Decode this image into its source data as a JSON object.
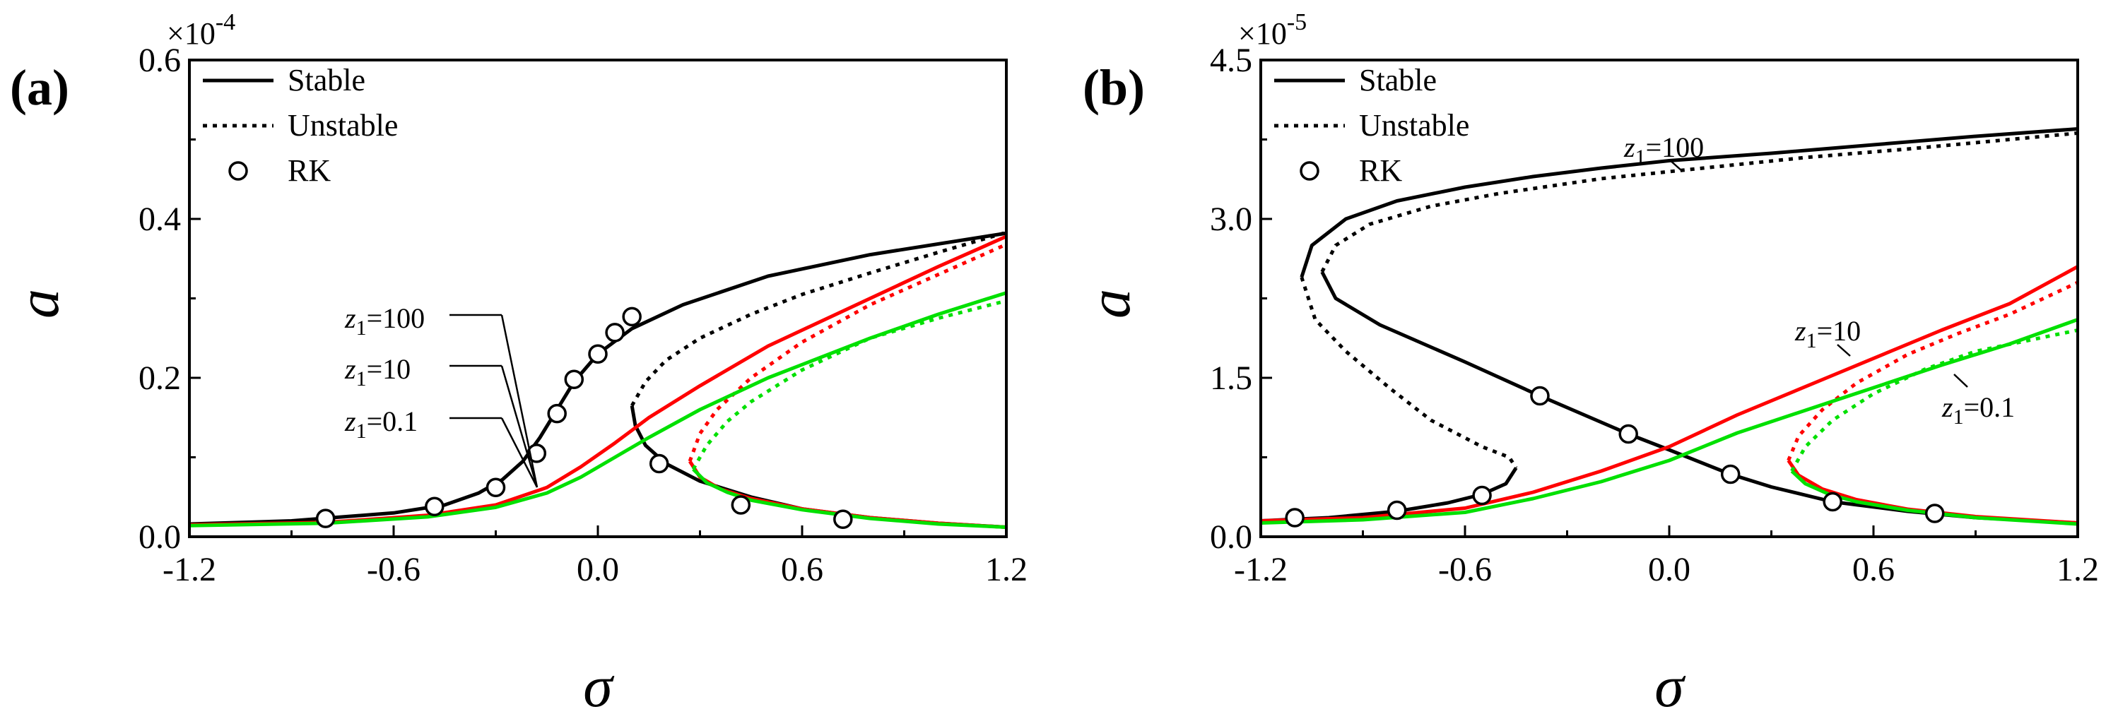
{
  "chart_data": [
    {
      "type": "line",
      "panel_label": "(a)",
      "xlabel": "σ",
      "ylabel": "a",
      "xlim": [
        -1.2,
        1.2
      ],
      "ylim": [
        0.0,
        0.6
      ],
      "y_multiplier": {
        "base": "×10",
        "exp": "-4"
      },
      "x_ticks": [
        "-1.2",
        "-0.6",
        "0.0",
        "0.6",
        "1.2"
      ],
      "y_ticks": [
        "0.0",
        "0.2",
        "0.4",
        "0.6"
      ],
      "legend": [
        {
          "label": "Stable",
          "style": "solid"
        },
        {
          "label": "Unstable",
          "style": "dotted"
        },
        {
          "label": "RK",
          "style": "circle"
        }
      ],
      "annotations": [
        {
          "sub": "1",
          "value": "=100"
        },
        {
          "sub": "1",
          "value": "=10"
        },
        {
          "sub": "1",
          "value": "=0.1"
        }
      ],
      "series": [
        {
          "name": "z1=100 stable",
          "color": "#000000",
          "style": "solid",
          "points": [
            [
              -1.2,
              0.016
            ],
            [
              -0.9,
              0.02
            ],
            [
              -0.6,
              0.03
            ],
            [
              -0.45,
              0.04
            ],
            [
              -0.35,
              0.055
            ],
            [
              -0.28,
              0.072
            ],
            [
              -0.22,
              0.095
            ],
            [
              -0.17,
              0.125
            ],
            [
              -0.12,
              0.16
            ],
            [
              -0.07,
              0.195
            ],
            [
              0.0,
              0.23
            ],
            [
              0.1,
              0.262
            ],
            [
              0.25,
              0.292
            ],
            [
              0.5,
              0.328
            ],
            [
              0.8,
              0.355
            ],
            [
              1.2,
              0.382
            ]
          ]
        },
        {
          "name": "z1=100 stable lower",
          "color": "#000000",
          "style": "solid",
          "points": [
            [
              0.1,
              0.165
            ],
            [
              0.11,
              0.14
            ],
            [
              0.14,
              0.115
            ],
            [
              0.2,
              0.092
            ],
            [
              0.3,
              0.07
            ],
            [
              0.45,
              0.05
            ],
            [
              0.6,
              0.035
            ],
            [
              0.8,
              0.024
            ],
            [
              1.0,
              0.017
            ],
            [
              1.2,
              0.012
            ]
          ]
        },
        {
          "name": "z1=100 unstable",
          "color": "#000000",
          "style": "dotted",
          "points": [
            [
              0.1,
              0.165
            ],
            [
              0.14,
              0.195
            ],
            [
              0.2,
              0.222
            ],
            [
              0.3,
              0.25
            ],
            [
              0.45,
              0.28
            ],
            [
              0.6,
              0.305
            ],
            [
              0.8,
              0.332
            ],
            [
              1.0,
              0.358
            ],
            [
              1.2,
              0.383
            ]
          ]
        },
        {
          "name": "z1=10 stable",
          "color": "#ff0000",
          "style": "solid",
          "points": [
            [
              -1.2,
              0.015
            ],
            [
              -0.8,
              0.018
            ],
            [
              -0.5,
              0.027
            ],
            [
              -0.3,
              0.04
            ],
            [
              -0.15,
              0.062
            ],
            [
              -0.05,
              0.088
            ],
            [
              0.05,
              0.118
            ],
            [
              0.15,
              0.15
            ],
            [
              0.3,
              0.19
            ],
            [
              0.5,
              0.24
            ],
            [
              0.8,
              0.3
            ],
            [
              1.0,
              0.34
            ],
            [
              1.2,
              0.378
            ]
          ]
        },
        {
          "name": "z1=10 stable lower",
          "color": "#ff0000",
          "style": "solid",
          "points": [
            [
              0.27,
              0.095
            ],
            [
              0.3,
              0.075
            ],
            [
              0.36,
              0.06
            ],
            [
              0.45,
              0.048
            ],
            [
              0.6,
              0.035
            ],
            [
              0.8,
              0.024
            ],
            [
              1.0,
              0.017
            ],
            [
              1.2,
              0.012
            ]
          ]
        },
        {
          "name": "z1=10 unstable",
          "color": "#ff0000",
          "style": "dotted",
          "points": [
            [
              0.27,
              0.095
            ],
            [
              0.3,
              0.13
            ],
            [
              0.35,
              0.16
            ],
            [
              0.45,
              0.2
            ],
            [
              0.6,
              0.245
            ],
            [
              0.8,
              0.292
            ],
            [
              1.0,
              0.33
            ],
            [
              1.2,
              0.368
            ]
          ]
        },
        {
          "name": "z1=0.1 stable",
          "color": "#00e000",
          "style": "solid",
          "points": [
            [
              -1.2,
              0.014
            ],
            [
              -0.8,
              0.017
            ],
            [
              -0.5,
              0.025
            ],
            [
              -0.3,
              0.037
            ],
            [
              -0.15,
              0.055
            ],
            [
              -0.05,
              0.075
            ],
            [
              0.05,
              0.1
            ],
            [
              0.15,
              0.125
            ],
            [
              0.3,
              0.16
            ],
            [
              0.5,
              0.2
            ],
            [
              0.8,
              0.25
            ],
            [
              1.0,
              0.28
            ],
            [
              1.2,
              0.307
            ]
          ]
        },
        {
          "name": "z1=0.1 stable lower",
          "color": "#00e000",
          "style": "solid",
          "points": [
            [
              0.28,
              0.085
            ],
            [
              0.32,
              0.068
            ],
            [
              0.38,
              0.056
            ],
            [
              0.45,
              0.046
            ],
            [
              0.6,
              0.034
            ],
            [
              0.8,
              0.023
            ],
            [
              1.0,
              0.016
            ],
            [
              1.2,
              0.012
            ]
          ]
        },
        {
          "name": "z1=0.1 unstable",
          "color": "#00e000",
          "style": "dotted",
          "points": [
            [
              0.28,
              0.085
            ],
            [
              0.32,
              0.115
            ],
            [
              0.38,
              0.145
            ],
            [
              0.45,
              0.17
            ],
            [
              0.6,
              0.21
            ],
            [
              0.8,
              0.25
            ],
            [
              1.0,
              0.275
            ],
            [
              1.2,
              0.297
            ]
          ]
        }
      ],
      "rk_points": [
        [
          -0.8,
          0.023
        ],
        [
          -0.48,
          0.038
        ],
        [
          -0.3,
          0.062
        ],
        [
          -0.18,
          0.105
        ],
        [
          -0.12,
          0.155
        ],
        [
          -0.07,
          0.198
        ],
        [
          0.0,
          0.23
        ],
        [
          0.05,
          0.257
        ],
        [
          0.1,
          0.277
        ],
        [
          0.18,
          0.092
        ],
        [
          0.42,
          0.04
        ],
        [
          0.72,
          0.022
        ]
      ]
    },
    {
      "type": "line",
      "panel_label": "(b)",
      "xlabel": "σ",
      "ylabel": "a",
      "xlim": [
        -1.2,
        1.2
      ],
      "ylim": [
        0.0,
        4.5
      ],
      "y_multiplier": {
        "base": "×10",
        "exp": "-5"
      },
      "x_ticks": [
        "-1.2",
        "-0.6",
        "0.0",
        "0.6",
        "1.2"
      ],
      "y_ticks": [
        "0.0",
        "1.5",
        "3.0",
        "4.5"
      ],
      "legend": [
        {
          "label": "Stable",
          "style": "solid"
        },
        {
          "label": "Unstable",
          "style": "dotted"
        },
        {
          "label": "RK",
          "style": "circle"
        }
      ],
      "annotations": [
        {
          "sub": "1",
          "value": "=100"
        },
        {
          "sub": "1",
          "value": "=10"
        },
        {
          "sub": "1",
          "value": "=0.1"
        }
      ],
      "series": [
        {
          "name": "z1=100 upper stable",
          "color": "#000000",
          "style": "solid",
          "points": [
            [
              -1.08,
              2.45
            ],
            [
              -1.05,
              2.75
            ],
            [
              -0.95,
              3.0
            ],
            [
              -0.8,
              3.17
            ],
            [
              -0.6,
              3.3
            ],
            [
              -0.4,
              3.4
            ],
            [
              -0.2,
              3.48
            ],
            [
              0.0,
              3.55
            ],
            [
              0.3,
              3.62
            ],
            [
              0.6,
              3.7
            ],
            [
              0.9,
              3.78
            ],
            [
              1.2,
              3.85
            ]
          ]
        },
        {
          "name": "z1=100 lower stable",
          "color": "#000000",
          "style": "solid",
          "points": [
            [
              -1.2,
              0.15
            ],
            [
              -1.0,
              0.18
            ],
            [
              -0.8,
              0.24
            ],
            [
              -0.65,
              0.32
            ],
            [
              -0.55,
              0.4
            ],
            [
              -0.48,
              0.5
            ],
            [
              -0.45,
              0.65
            ]
          ]
        },
        {
          "name": "z1=100 middle branch",
          "color": "#000000",
          "style": "solid",
          "points": [
            [
              -1.02,
              2.5
            ],
            [
              -0.98,
              2.25
            ],
            [
              -0.85,
              2.0
            ],
            [
              -0.6,
              1.65
            ],
            [
              -0.38,
              1.33
            ],
            [
              -0.12,
              0.97
            ],
            [
              0.0,
              0.82
            ],
            [
              0.18,
              0.59
            ],
            [
              0.3,
              0.47
            ],
            [
              0.48,
              0.33
            ],
            [
              0.7,
              0.24
            ],
            [
              0.9,
              0.18
            ],
            [
              1.2,
              0.13
            ]
          ]
        },
        {
          "name": "z1=100 unstable lower",
          "color": "#000000",
          "style": "dotted",
          "points": [
            [
              -1.08,
              2.45
            ],
            [
              -1.04,
              2.05
            ],
            [
              -0.95,
              1.75
            ],
            [
              -0.82,
              1.4
            ],
            [
              -0.7,
              1.1
            ],
            [
              -0.55,
              0.85
            ],
            [
              -0.47,
              0.75
            ],
            [
              -0.45,
              0.65
            ]
          ]
        },
        {
          "name": "z1=100 unstable upper",
          "color": "#000000",
          "style": "dotted",
          "points": [
            [
              -1.02,
              2.5
            ],
            [
              -0.98,
              2.75
            ],
            [
              -0.88,
              2.95
            ],
            [
              -0.7,
              3.12
            ],
            [
              -0.5,
              3.24
            ],
            [
              -0.2,
              3.38
            ],
            [
              0.1,
              3.48
            ],
            [
              0.4,
              3.58
            ],
            [
              0.7,
              3.66
            ],
            [
              1.0,
              3.75
            ],
            [
              1.2,
              3.81
            ]
          ]
        },
        {
          "name": "z1=10 stable",
          "color": "#ff0000",
          "style": "solid",
          "points": [
            [
              -1.2,
              0.15
            ],
            [
              -0.9,
              0.18
            ],
            [
              -0.6,
              0.27
            ],
            [
              -0.4,
              0.42
            ],
            [
              -0.2,
              0.62
            ],
            [
              0.0,
              0.85
            ],
            [
              0.2,
              1.15
            ],
            [
              0.5,
              1.55
            ],
            [
              0.8,
              1.95
            ],
            [
              1.0,
              2.2
            ],
            [
              1.2,
              2.55
            ]
          ]
        },
        {
          "name": "z1=10 stable lower",
          "color": "#ff0000",
          "style": "solid",
          "points": [
            [
              0.35,
              0.72
            ],
            [
              0.38,
              0.58
            ],
            [
              0.45,
              0.45
            ],
            [
              0.55,
              0.35
            ],
            [
              0.7,
              0.26
            ],
            [
              0.9,
              0.19
            ],
            [
              1.2,
              0.13
            ]
          ]
        },
        {
          "name": "z1=10 unstable",
          "color": "#ff0000",
          "style": "dotted",
          "points": [
            [
              0.35,
              0.72
            ],
            [
              0.38,
              0.95
            ],
            [
              0.45,
              1.2
            ],
            [
              0.55,
              1.45
            ],
            [
              0.7,
              1.72
            ],
            [
              0.85,
              1.92
            ],
            [
              1.0,
              2.1
            ],
            [
              1.2,
              2.4
            ]
          ]
        },
        {
          "name": "z1=0.1 stable",
          "color": "#00e000",
          "style": "solid",
          "points": [
            [
              -1.2,
              0.13
            ],
            [
              -0.9,
              0.16
            ],
            [
              -0.6,
              0.23
            ],
            [
              -0.4,
              0.36
            ],
            [
              -0.2,
              0.52
            ],
            [
              0.0,
              0.72
            ],
            [
              0.2,
              0.98
            ],
            [
              0.5,
              1.3
            ],
            [
              0.8,
              1.62
            ],
            [
              1.0,
              1.82
            ],
            [
              1.2,
              2.05
            ]
          ]
        },
        {
          "name": "z1=0.1 stable lower",
          "color": "#00e000",
          "style": "solid",
          "points": [
            [
              0.36,
              0.62
            ],
            [
              0.4,
              0.5
            ],
            [
              0.47,
              0.4
            ],
            [
              0.55,
              0.33
            ],
            [
              0.7,
              0.25
            ],
            [
              0.9,
              0.18
            ],
            [
              1.2,
              0.12
            ]
          ]
        },
        {
          "name": "z1=0.1 unstable",
          "color": "#00e000",
          "style": "dotted",
          "points": [
            [
              0.36,
              0.62
            ],
            [
              0.4,
              0.85
            ],
            [
              0.48,
              1.1
            ],
            [
              0.6,
              1.35
            ],
            [
              0.75,
              1.58
            ],
            [
              0.9,
              1.75
            ],
            [
              1.05,
              1.85
            ],
            [
              1.2,
              1.95
            ]
          ]
        }
      ],
      "rk_points": [
        [
          -1.1,
          0.18
        ],
        [
          -0.8,
          0.25
        ],
        [
          -0.55,
          0.39
        ],
        [
          -0.38,
          1.33
        ],
        [
          -0.12,
          0.97
        ],
        [
          0.18,
          0.59
        ],
        [
          0.48,
          0.33
        ],
        [
          0.78,
          0.22
        ]
      ]
    }
  ]
}
